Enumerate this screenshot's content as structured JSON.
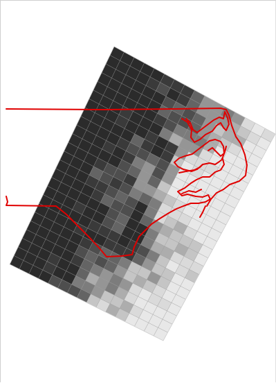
{
  "map": {
    "raster": {
      "cols": 16,
      "rows": 25,
      "grid_line_color": "#9a9a9a",
      "outline_color": "#cfcfcf",
      "gray_scale": [
        "#2b2b2b",
        "#3a3a3a",
        "#4e4e4e",
        "#646464",
        "#7c7c7c",
        "#959595",
        "#adadad",
        "#c5c5c5",
        "#dadada",
        "#e8e8e8"
      ]
    },
    "coastline": {
      "color": "#e00000"
    }
  }
}
